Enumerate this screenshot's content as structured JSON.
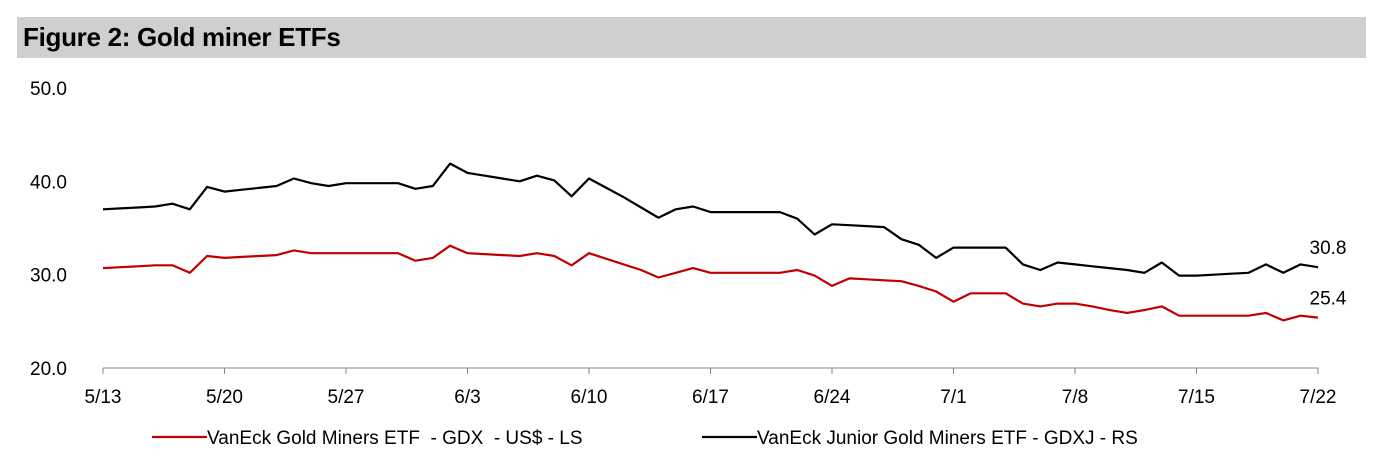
{
  "title": "Figure 2: Gold miner ETFs",
  "chart_data": {
    "type": "line",
    "title": "Figure 2: Gold miner ETFs",
    "xlabel": "",
    "ylabel": "",
    "ylim": [
      20,
      50
    ],
    "yticks": [
      "20.0",
      "30.0",
      "40.0",
      "50.0"
    ],
    "xtick_labels": [
      "5/13",
      "5/20",
      "5/27",
      "6/3",
      "6/10",
      "6/17",
      "6/24",
      "7/1",
      "7/8",
      "7/15",
      "7/22"
    ],
    "x_days_from_start": "daily, 5/13 to 7/22",
    "grid": false,
    "legend_position": "bottom",
    "colors": {
      "gdx": "#c00000",
      "gdxj": "#000000"
    },
    "series": [
      {
        "name": "VanEck Gold Miners ETF  - GDX  - US$ - LS",
        "color": "#c00000",
        "end_label": "25.4",
        "values": [
          30.7,
          30.8,
          30.9,
          31.0,
          31.0,
          30.2,
          32.0,
          31.8,
          31.9,
          32.0,
          32.1,
          32.6,
          32.3,
          32.3,
          32.3,
          32.3,
          32.3,
          32.3,
          31.5,
          31.8,
          33.1,
          32.3,
          32.2,
          32.1,
          32.0,
          32.3,
          32.0,
          31.0,
          32.3,
          31.7,
          31.1,
          30.5,
          29.7,
          30.2,
          30.7,
          30.2,
          30.2,
          30.2,
          30.2,
          30.2,
          30.5,
          29.9,
          28.8,
          29.6,
          29.5,
          29.4,
          29.3,
          28.8,
          28.2,
          27.1,
          28.0,
          28.0,
          28.0,
          26.9,
          26.6,
          26.9,
          26.9,
          26.6,
          26.2,
          25.9,
          26.2,
          26.6,
          25.6,
          25.6,
          25.6,
          25.6,
          25.6,
          25.9,
          25.1,
          25.6,
          25.4
        ]
      },
      {
        "name": "VanEck Junior Gold Miners ETF - GDXJ - RS",
        "color": "#000000",
        "end_label": "30.8",
        "values": [
          37.0,
          37.1,
          37.2,
          37.3,
          37.6,
          37.0,
          39.4,
          38.9,
          39.1,
          39.3,
          39.5,
          40.3,
          39.8,
          39.5,
          39.8,
          39.8,
          39.8,
          39.8,
          39.2,
          39.5,
          41.9,
          40.9,
          40.6,
          40.3,
          40.0,
          40.6,
          40.1,
          38.4,
          40.3,
          39.3,
          38.3,
          37.2,
          36.1,
          37.0,
          37.3,
          36.7,
          36.7,
          36.7,
          36.7,
          36.7,
          36.0,
          34.3,
          35.4,
          35.3,
          35.2,
          35.1,
          33.8,
          33.2,
          31.8,
          32.9,
          32.9,
          32.9,
          32.9,
          31.1,
          30.5,
          31.3,
          31.1,
          30.9,
          30.7,
          30.5,
          30.2,
          31.3,
          29.9,
          29.9,
          30.0,
          30.1,
          30.2,
          31.1,
          30.2,
          31.1,
          30.8
        ]
      }
    ]
  }
}
